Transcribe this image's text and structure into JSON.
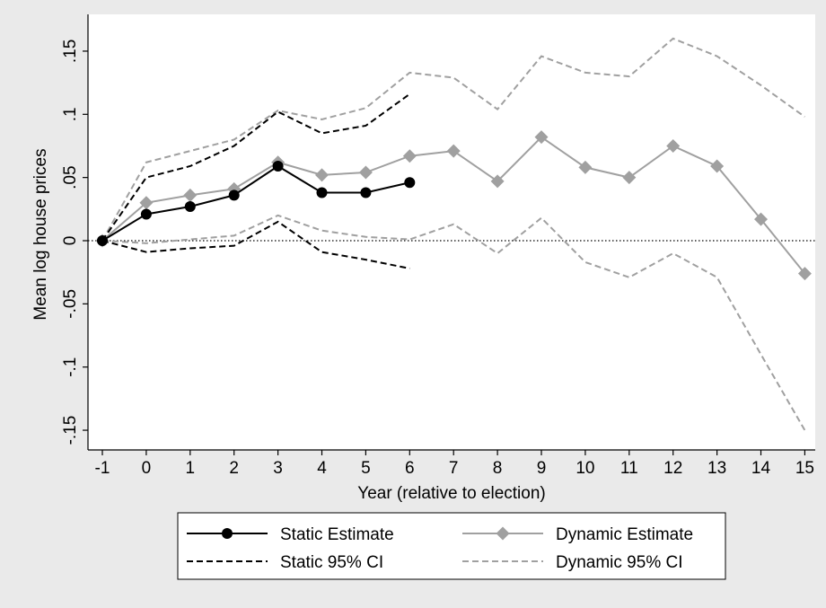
{
  "chart_data": {
    "type": "line",
    "xlabel": "Year (relative to election)",
    "ylabel": "Mean log house prices",
    "xlim": [
      -1,
      15
    ],
    "ylim": [
      -0.15,
      0.15
    ],
    "x_ticks": [
      -1,
      0,
      1,
      2,
      3,
      4,
      5,
      6,
      7,
      8,
      9,
      10,
      11,
      12,
      13,
      14,
      15
    ],
    "x_tick_labels": [
      "-1",
      "0",
      "1",
      "2",
      "3",
      "4",
      "5",
      "6",
      "7",
      "8",
      "9",
      "10",
      "11",
      "12",
      "13",
      "14",
      "15"
    ],
    "y_ticks": [
      -0.15,
      -0.1,
      -0.05,
      0,
      0.05,
      0.1,
      0.15
    ],
    "y_tick_labels": [
      "-.15",
      "-.1",
      "-.05",
      "0",
      ".05",
      ".1",
      ".15"
    ],
    "reference_line": {
      "y": 0,
      "style": "dotted"
    },
    "grid": false,
    "legend_position": "bottom",
    "series": [
      {
        "name": "Static Estimate",
        "style": "solid",
        "marker": "circle",
        "color": "#000000",
        "x": [
          -1,
          0,
          1,
          2,
          3,
          4,
          5,
          6
        ],
        "y": [
          0,
          0.021,
          0.027,
          0.036,
          0.059,
          0.038,
          0.038,
          0.046
        ]
      },
      {
        "name": "Dynamic Estimate",
        "style": "solid",
        "marker": "diamond",
        "color": "#a0a0a0",
        "x": [
          -1,
          0,
          1,
          2,
          3,
          4,
          5,
          6,
          7,
          8,
          9,
          10,
          11,
          12,
          13,
          14,
          15
        ],
        "y": [
          0,
          0.03,
          0.036,
          0.041,
          0.062,
          0.052,
          0.054,
          0.067,
          0.071,
          0.047,
          0.082,
          0.058,
          0.05,
          0.075,
          0.059,
          0.017,
          -0.026
        ]
      },
      {
        "name": "Static 95% CI",
        "style": "dashed",
        "marker": "none",
        "color": "#000000",
        "x": [
          -1,
          0,
          1,
          2,
          3,
          4,
          5,
          6
        ],
        "y_upper": [
          0,
          0.05,
          0.059,
          0.075,
          0.102,
          0.085,
          0.091,
          0.116
        ],
        "y_lower": [
          0,
          -0.009,
          -0.006,
          -0.004,
          0.015,
          -0.009,
          -0.015,
          -0.022
        ]
      },
      {
        "name": "Dynamic 95% CI",
        "style": "dashed",
        "marker": "none",
        "color": "#a0a0a0",
        "x": [
          -1,
          0,
          1,
          2,
          3,
          4,
          5,
          6,
          7,
          8,
          9,
          10,
          11,
          12,
          13,
          14,
          15
        ],
        "y_upper": [
          0,
          0.062,
          0.071,
          0.08,
          0.103,
          0.096,
          0.105,
          0.133,
          0.129,
          0.104,
          0.146,
          0.133,
          0.13,
          0.16,
          0.146,
          0.123,
          0.098
        ],
        "y_lower": [
          0,
          -0.002,
          0.001,
          0.004,
          0.02,
          0.008,
          0.003,
          0.001,
          0.013,
          -0.01,
          0.018,
          -0.017,
          -0.029,
          -0.01,
          -0.029,
          -0.09,
          -0.15
        ]
      }
    ],
    "legend": {
      "entries": [
        {
          "label": "Static Estimate",
          "series": 0
        },
        {
          "label": "Dynamic Estimate",
          "series": 1
        },
        {
          "label": "Static 95% CI",
          "series": 2
        },
        {
          "label": "Dynamic 95% CI",
          "series": 3
        }
      ]
    }
  }
}
